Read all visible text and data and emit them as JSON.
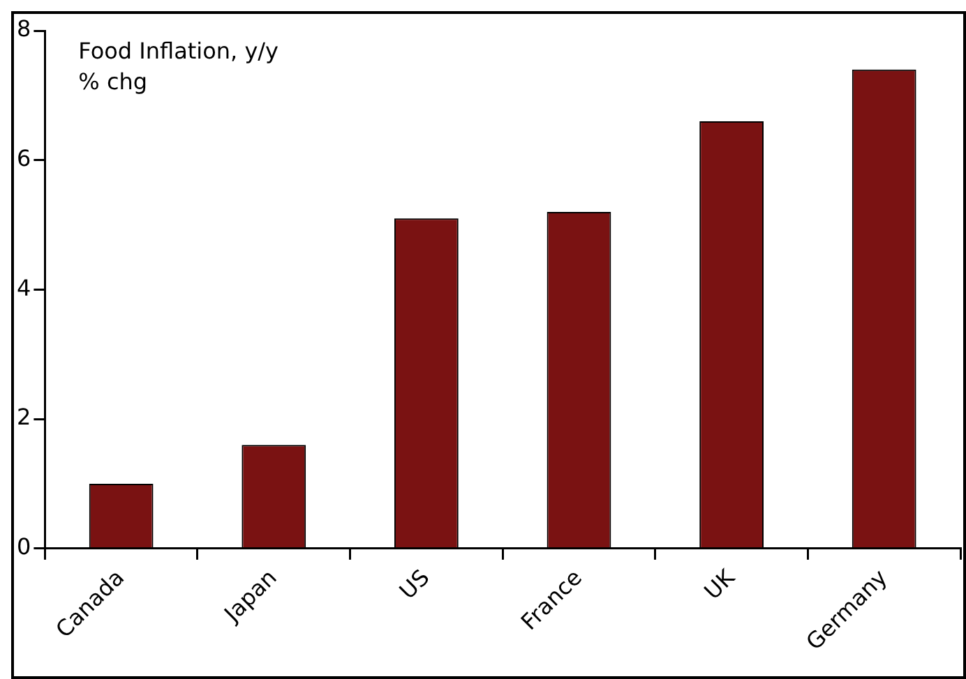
{
  "chart_data": {
    "type": "bar",
    "title": "Food Inflation, y/y % chg",
    "categories": [
      "Canada",
      "Japan",
      "US",
      "France",
      "UK",
      "Germany"
    ],
    "values": [
      1.0,
      1.6,
      5.1,
      5.2,
      6.6,
      7.4
    ],
    "color": "#7a1212",
    "ylim": [
      0,
      8
    ],
    "yticks": [
      0,
      2,
      4,
      6,
      8
    ],
    "grid": false,
    "legend": false
  }
}
